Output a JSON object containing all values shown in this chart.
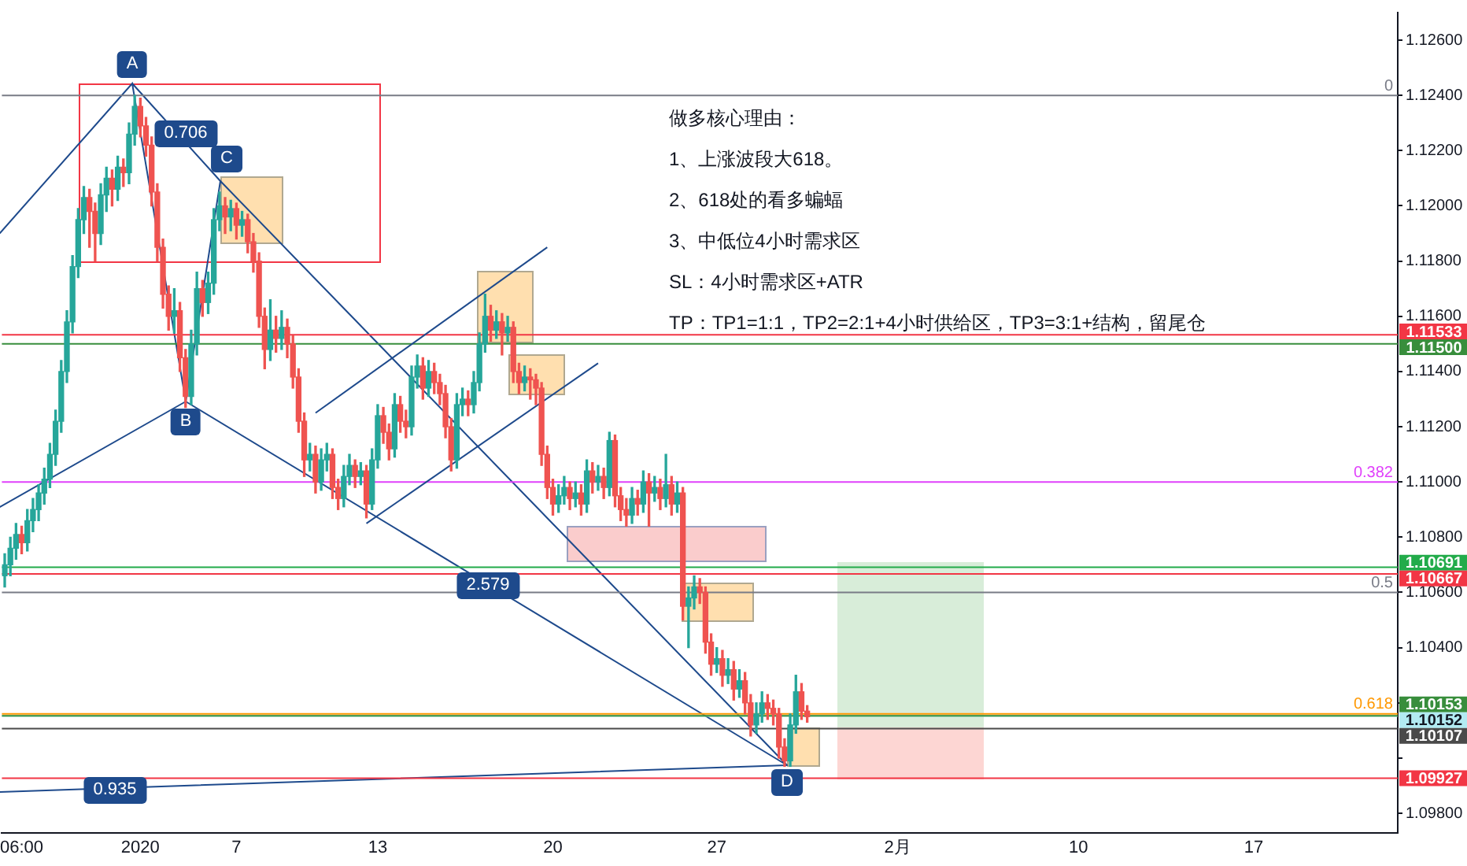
{
  "chart_data": {
    "type": "candlestick",
    "categories": [
      null,
      null,
      null,
      "06:00",
      null,
      null,
      null,
      null,
      null,
      null,
      null,
      null,
      null,
      null,
      null,
      null,
      null,
      null,
      null,
      null,
      null,
      null,
      null,
      null,
      "2020",
      null,
      null,
      null,
      null,
      null,
      null,
      null,
      null,
      null,
      null,
      null,
      null,
      null,
      null,
      null,
      null,
      "7",
      null,
      null,
      null,
      null,
      null,
      null,
      null,
      null,
      null,
      null,
      null,
      null,
      null,
      null,
      null,
      null,
      null,
      null,
      null,
      null,
      null,
      null,
      null,
      null,
      "13",
      null,
      null,
      null,
      null,
      null,
      null,
      null,
      null,
      null,
      null,
      null,
      null,
      null,
      null,
      null,
      null,
      null,
      null,
      null,
      null,
      null,
      null,
      null,
      null,
      null,
      null,
      null,
      null,
      null,
      null,
      "20",
      null,
      null,
      null,
      null,
      null,
      null,
      null,
      null,
      null,
      null,
      null,
      null,
      null,
      null,
      null,
      null,
      null,
      null,
      null,
      null,
      null,
      null,
      null,
      null,
      null,
      null,
      null,
      null,
      "27",
      null,
      null,
      null,
      null,
      null,
      null,
      null,
      null,
      null,
      null,
      null,
      null,
      null,
      null,
      null,
      null,
      null,
      null,
      null,
      null,
      null,
      null,
      null,
      null,
      null,
      null,
      null,
      null,
      null,
      null,
      null,
      "2月",
      null,
      null,
      null,
      null,
      null,
      null,
      null,
      null,
      null,
      null,
      null,
      null,
      null,
      null,
      null,
      null,
      null,
      null,
      null,
      null,
      null,
      null,
      null,
      null,
      null,
      null,
      null,
      null,
      null,
      null,
      null,
      "10",
      null,
      null,
      null,
      null,
      null,
      null,
      null,
      null,
      null,
      null,
      null,
      null,
      null,
      null,
      null,
      null,
      null,
      null,
      null,
      null,
      null,
      null,
      null,
      null,
      null,
      null,
      null,
      null,
      null,
      null,
      "17",
      null,
      null,
      null,
      null,
      null,
      null,
      null,
      null,
      null,
      null,
      null,
      null,
      null,
      null,
      null,
      null,
      null,
      null,
      null,
      null,
      null,
      null,
      null,
      null,
      null
    ],
    "ohlc": [
      [
        1.1066,
        1.1074,
        1.1062,
        1.107
      ],
      [
        1.107,
        1.108,
        1.1066,
        1.1076
      ],
      [
        1.1076,
        1.1085,
        1.1072,
        1.1081
      ],
      [
        1.1081,
        1.1084,
        1.1074,
        1.1078
      ],
      [
        1.1078,
        1.109,
        1.1075,
        1.1086
      ],
      [
        1.1086,
        1.1094,
        1.1082,
        1.109
      ],
      [
        1.109,
        1.1099,
        1.1086,
        1.1096
      ],
      [
        1.1096,
        1.1105,
        1.1092,
        1.1101
      ],
      [
        1.1101,
        1.1114,
        1.1098,
        1.111
      ],
      [
        1.111,
        1.1126,
        1.1106,
        1.1122
      ],
      [
        1.1122,
        1.1144,
        1.1118,
        1.114
      ],
      [
        1.114,
        1.1162,
        1.1136,
        1.1158
      ],
      [
        1.1158,
        1.1182,
        1.1154,
        1.1178
      ],
      [
        1.1178,
        1.1199,
        1.1174,
        1.1195
      ],
      [
        1.1195,
        1.1207,
        1.119,
        1.1203
      ],
      [
        1.1203,
        1.1206,
        1.1185,
        1.1198
      ],
      [
        1.1198,
        1.1201,
        1.118,
        1.119
      ],
      [
        1.119,
        1.1208,
        1.1186,
        1.1204
      ],
      [
        1.1204,
        1.1214,
        1.1198,
        1.121
      ],
      [
        1.121,
        1.1213,
        1.12,
        1.1206
      ],
      [
        1.1206,
        1.1218,
        1.1202,
        1.1214
      ],
      [
        1.1214,
        1.1217,
        1.1207,
        1.1212
      ],
      [
        1.1212,
        1.123,
        1.1208,
        1.1226
      ],
      [
        1.1226,
        1.124,
        1.1222,
        1.1236
      ],
      [
        1.1236,
        1.1239,
        1.1225,
        1.1229
      ],
      [
        1.1229,
        1.1232,
        1.1218,
        1.1222
      ],
      [
        1.1222,
        1.1225,
        1.12,
        1.1205
      ],
      [
        1.1205,
        1.1208,
        1.118,
        1.1185
      ],
      [
        1.1185,
        1.1188,
        1.1163,
        1.1168
      ],
      [
        1.1168,
        1.1171,
        1.1155,
        1.116
      ],
      [
        1.116,
        1.117,
        1.1154,
        1.1162
      ],
      [
        1.1162,
        1.1165,
        1.114,
        1.1145
      ],
      [
        1.1145,
        1.1148,
        1.1127,
        1.1131
      ],
      [
        1.1131,
        1.1155,
        1.1128,
        1.115
      ],
      [
        1.115,
        1.1176,
        1.1146,
        1.117
      ],
      [
        1.117,
        1.1173,
        1.116,
        1.1165
      ],
      [
        1.1165,
        1.1176,
        1.1161,
        1.1172
      ],
      [
        1.1172,
        1.1199,
        1.1168,
        1.1195
      ],
      [
        1.1195,
        1.1205,
        1.1191,
        1.12
      ],
      [
        1.12,
        1.1203,
        1.119,
        1.1196
      ],
      [
        1.1196,
        1.1202,
        1.1191,
        1.1199
      ],
      [
        1.1199,
        1.1201,
        1.1188,
        1.1193
      ],
      [
        1.1193,
        1.1198,
        1.1189,
        1.1195
      ],
      [
        1.1195,
        1.1197,
        1.1183,
        1.1187
      ],
      [
        1.1187,
        1.119,
        1.1176,
        1.118
      ],
      [
        1.118,
        1.1183,
        1.1156,
        1.116
      ],
      [
        1.116,
        1.1163,
        1.1141,
        1.1148
      ],
      [
        1.1148,
        1.1166,
        1.1144,
        1.1155
      ],
      [
        1.1155,
        1.116,
        1.1147,
        1.1152
      ],
      [
        1.1152,
        1.1162,
        1.1148,
        1.1156
      ],
      [
        1.1156,
        1.1159,
        1.1145,
        1.115
      ],
      [
        1.115,
        1.1153,
        1.1134,
        1.1138
      ],
      [
        1.1138,
        1.1141,
        1.1118,
        1.1122
      ],
      [
        1.1122,
        1.1125,
        1.1102,
        1.1108
      ],
      [
        1.1108,
        1.1114,
        1.1104,
        1.111
      ],
      [
        1.111,
        1.1113,
        1.1096,
        1.11
      ],
      [
        1.11,
        1.1112,
        1.1097,
        1.1108
      ],
      [
        1.1108,
        1.1114,
        1.1104,
        1.111
      ],
      [
        1.111,
        1.1112,
        1.1094,
        1.1098
      ],
      [
        1.1098,
        1.1101,
        1.109,
        1.1094
      ],
      [
        1.1094,
        1.1106,
        1.1091,
        1.1102
      ],
      [
        1.1102,
        1.111,
        1.1099,
        1.1106
      ],
      [
        1.1106,
        1.1108,
        1.1098,
        1.1102
      ],
      [
        1.1102,
        1.1107,
        1.1099,
        1.1104
      ],
      [
        1.1104,
        1.1106,
        1.1087,
        1.1092
      ],
      [
        1.1092,
        1.1112,
        1.109,
        1.1108
      ],
      [
        1.1108,
        1.1128,
        1.1105,
        1.1124
      ],
      [
        1.1124,
        1.1127,
        1.1114,
        1.1118
      ],
      [
        1.1118,
        1.1121,
        1.1108,
        1.1112
      ],
      [
        1.1112,
        1.1132,
        1.1109,
        1.1128
      ],
      [
        1.1128,
        1.1131,
        1.1118,
        1.1122
      ],
      [
        1.1122,
        1.1126,
        1.1116,
        1.112
      ],
      [
        1.112,
        1.1142,
        1.1117,
        1.1138
      ],
      [
        1.1138,
        1.1146,
        1.1134,
        1.1142
      ],
      [
        1.1142,
        1.1145,
        1.113,
        1.1134
      ],
      [
        1.1134,
        1.1144,
        1.1131,
        1.114
      ],
      [
        1.114,
        1.1143,
        1.1132,
        1.1136
      ],
      [
        1.1136,
        1.1139,
        1.1128,
        1.1132
      ],
      [
        1.1132,
        1.1135,
        1.1116,
        1.112
      ],
      [
        1.112,
        1.1123,
        1.1104,
        1.1108
      ],
      [
        1.1108,
        1.1132,
        1.1105,
        1.1128
      ],
      [
        1.1128,
        1.1134,
        1.1124,
        1.113
      ],
      [
        1.113,
        1.1133,
        1.1124,
        1.1128
      ],
      [
        1.1128,
        1.114,
        1.1125,
        1.1136
      ],
      [
        1.1136,
        1.1154,
        1.1133,
        1.115
      ],
      [
        1.115,
        1.1168,
        1.1147,
        1.116
      ],
      [
        1.116,
        1.1164,
        1.1151,
        1.1155
      ],
      [
        1.1155,
        1.1162,
        1.1152,
        1.1158
      ],
      [
        1.1158,
        1.1161,
        1.1146,
        1.1154
      ],
      [
        1.1154,
        1.116,
        1.1151,
        1.1156
      ],
      [
        1.1156,
        1.1158,
        1.1136,
        1.114
      ],
      [
        1.114,
        1.1143,
        1.1132,
        1.1136
      ],
      [
        1.1136,
        1.1142,
        1.1133,
        1.1138
      ],
      [
        1.1138,
        1.1141,
        1.113,
        1.1137
      ],
      [
        1.1137,
        1.1139,
        1.1128,
        1.1134
      ],
      [
        1.1134,
        1.1136,
        1.1106,
        1.111
      ],
      [
        1.111,
        1.1113,
        1.1094,
        1.1098
      ],
      [
        1.1098,
        1.1101,
        1.1088,
        1.1092
      ],
      [
        1.1092,
        1.1099,
        1.1089,
        1.1095
      ],
      [
        1.1095,
        1.1102,
        1.1092,
        1.1098
      ],
      [
        1.1098,
        1.11,
        1.109,
        1.1094
      ],
      [
        1.1094,
        1.11,
        1.1091,
        1.1096
      ],
      [
        1.1096,
        1.1099,
        1.1088,
        1.1092
      ],
      [
        1.1092,
        1.1108,
        1.1089,
        1.1104
      ],
      [
        1.1104,
        1.1107,
        1.1096,
        1.11
      ],
      [
        1.11,
        1.1106,
        1.1097,
        1.1102
      ],
      [
        1.1102,
        1.1105,
        1.1094,
        1.1098
      ],
      [
        1.1098,
        1.1118,
        1.1095,
        1.1115
      ],
      [
        1.1115,
        1.1117,
        1.1091,
        1.1095
      ],
      [
        1.1095,
        1.1098,
        1.1086,
        1.109
      ],
      [
        1.109,
        1.1094,
        1.1084,
        1.1088
      ],
      [
        1.1088,
        1.1098,
        1.1085,
        1.1094
      ],
      [
        1.1094,
        1.1097,
        1.1088,
        1.1092
      ],
      [
        1.1092,
        1.1104,
        1.1089,
        1.11
      ],
      [
        1.11,
        1.1103,
        1.1084,
        1.1096
      ],
      [
        1.1096,
        1.1102,
        1.1093,
        1.1098
      ],
      [
        1.1098,
        1.1101,
        1.109,
        1.1094
      ],
      [
        1.1094,
        1.111,
        1.1091,
        1.1099
      ],
      [
        1.1099,
        1.1102,
        1.1088,
        1.1092
      ],
      [
        1.1092,
        1.11,
        1.1089,
        1.1096
      ],
      [
        1.1096,
        1.1098,
        1.105,
        1.1055
      ],
      [
        1.1055,
        1.1062,
        1.104,
        1.1058
      ],
      [
        1.1058,
        1.1066,
        1.1054,
        1.1062
      ],
      [
        1.1062,
        1.1065,
        1.1056,
        1.106
      ],
      [
        1.106,
        1.1062,
        1.1038,
        1.1042
      ],
      [
        1.1042,
        1.1045,
        1.103,
        1.1034
      ],
      [
        1.1034,
        1.104,
        1.1031,
        1.1036
      ],
      [
        1.1036,
        1.1039,
        1.1026,
        1.103
      ],
      [
        1.103,
        1.1036,
        1.1027,
        1.1032
      ],
      [
        1.1032,
        1.1035,
        1.1021,
        1.1025
      ],
      [
        1.1025,
        1.1032,
        1.1022,
        1.1028
      ],
      [
        1.1028,
        1.1031,
        1.1016,
        1.102
      ],
      [
        1.102,
        1.1023,
        1.1008,
        1.1012
      ],
      [
        1.1012,
        1.102,
        1.1009,
        1.1016
      ],
      [
        1.1016,
        1.1024,
        1.1013,
        1.102
      ],
      [
        1.102,
        1.1023,
        1.1014,
        1.1018
      ],
      [
        1.1018,
        1.1021,
        1.1012,
        1.1016
      ],
      [
        1.1016,
        1.1018,
        1.1,
        1.1004
      ],
      [
        1.1004,
        1.1007,
        1.0997,
        1.0999
      ],
      [
        1.0999,
        1.1016,
        1.0997,
        1.1012
      ],
      [
        1.1012,
        1.103,
        1.1009,
        1.1024
      ],
      [
        1.1024,
        1.1027,
        1.1014,
        1.1017
      ],
      [
        1.1017,
        1.1019,
        1.1013,
        1.1015
      ],
      null,
      null,
      null,
      null,
      null,
      null,
      null,
      null,
      null,
      null,
      null,
      null,
      null,
      null,
      null,
      null,
      null,
      null,
      null,
      null,
      null,
      null,
      null,
      null,
      null,
      null,
      null,
      null,
      null,
      null,
      null,
      null,
      null,
      null,
      null,
      null,
      null,
      null,
      null,
      null,
      null,
      null,
      null,
      null,
      null,
      null,
      null,
      null,
      null,
      null,
      null,
      null,
      null,
      null,
      null,
      null,
      null,
      null,
      null,
      null,
      null,
      null,
      null,
      null,
      null,
      null,
      null,
      null,
      null,
      null,
      null,
      null,
      null,
      null,
      null,
      null,
      null,
      null,
      null,
      null,
      null,
      null,
      null,
      null,
      null,
      null,
      null,
      null,
      null,
      null,
      null,
      null,
      null,
      null,
      null,
      null,
      null,
      null,
      null,
      null,
      null,
      null,
      null,
      null
    ],
    "ylim": [
      1.0973,
      1.127
    ],
    "series": [
      {
        "type": "line",
        "color": "#1e4a8c",
        "values": [
          null,
          null,
          null,
          null,
          null,
          null,
          null,
          null,
          null,
          null,
          null,
          null,
          null,
          null,
          null,
          null,
          null,
          null,
          null,
          null,
          null,
          null,
          null,
          null,
          null,
          null,
          null,
          null,
          null,
          null,
          null,
          null,
          null,
          null,
          null,
          null,
          null,
          null,
          null,
          null,
          null,
          null,
          null,
          null,
          null,
          null,
          null,
          null,
          null,
          null,
          null,
          null,
          null,
          null,
          null,
          null,
          null,
          null,
          null,
          null,
          null,
          null,
          null,
          null,
          1.1085,
          null,
          null,
          null,
          null,
          null,
          null,
          null,
          null,
          null,
          null,
          null,
          null,
          null,
          null,
          null,
          null,
          null,
          null,
          null,
          null,
          null,
          null,
          null,
          null,
          null,
          null,
          null,
          null,
          null,
          null,
          null,
          null,
          null,
          null,
          null,
          null,
          null,
          null,
          null,
          null,
          1.1143,
          null,
          null,
          null,
          null,
          null,
          null,
          null,
          null,
          null,
          null,
          null,
          null,
          null,
          null,
          null,
          null,
          null,
          null,
          null,
          null,
          null,
          null,
          null,
          null,
          null,
          null,
          null,
          null,
          null,
          null,
          null,
          null,
          null,
          null,
          null,
          null,
          null,
          null,
          null,
          null,
          null,
          null,
          null,
          null,
          null,
          null,
          null,
          null,
          null,
          null,
          null,
          null,
          null,
          null,
          null,
          null,
          null,
          null,
          null,
          null,
          null,
          null,
          null,
          null,
          null,
          null,
          null,
          null,
          null,
          null,
          null,
          null,
          null,
          null,
          null,
          null,
          null,
          null,
          null,
          null,
          null,
          null,
          null,
          null,
          null,
          null,
          null,
          null,
          null,
          null,
          null,
          null,
          null,
          null,
          null,
          null,
          null,
          null,
          null,
          null,
          null,
          null,
          null,
          null,
          null,
          null,
          null,
          null,
          null,
          null,
          null,
          null,
          null,
          null,
          null,
          null,
          null,
          null,
          null,
          null,
          null,
          null,
          null,
          null,
          null,
          null,
          null,
          null,
          null,
          null,
          null,
          null,
          null,
          null,
          null,
          null,
          null,
          null,
          null,
          null,
          null
        ]
      },
      {
        "type": "line",
        "color": "#1e4a8c",
        "values": [
          null,
          null,
          null,
          null,
          null,
          null,
          null,
          null,
          null,
          null,
          null,
          null,
          null,
          null,
          null,
          null,
          null,
          null,
          null,
          null,
          null,
          null,
          null,
          null,
          null,
          null,
          null,
          null,
          null,
          null,
          null,
          null,
          null,
          null,
          null,
          null,
          null,
          null,
          null,
          null,
          null,
          null,
          null,
          null,
          null,
          null,
          null,
          null,
          null,
          null,
          null,
          null,
          null,
          null,
          null,
          1.1125,
          null,
          null,
          null,
          null,
          null,
          null,
          null,
          null,
          null,
          null,
          null,
          null,
          null,
          null,
          null,
          null,
          null,
          null,
          null,
          null,
          null,
          null,
          null,
          null,
          null,
          null,
          null,
          null,
          null,
          null,
          null,
          null,
          null,
          null,
          null,
          null,
          null,
          null,
          null,
          null,
          1.1185,
          null,
          null,
          null,
          null,
          null,
          null,
          null,
          null,
          null,
          null,
          null,
          null,
          null,
          null,
          null,
          null,
          null,
          null,
          null,
          null,
          null,
          null,
          null,
          null,
          null,
          null,
          null,
          null,
          null,
          null,
          null,
          null,
          null,
          null,
          null,
          null,
          null,
          null,
          null,
          null,
          null,
          null,
          null,
          null,
          null,
          null,
          null,
          null,
          null,
          null,
          null,
          null,
          null,
          null,
          null,
          null,
          null,
          null,
          null,
          null,
          null,
          null,
          null,
          null,
          null,
          null,
          null,
          null,
          null,
          null,
          null,
          null,
          null,
          null,
          null,
          null,
          null,
          null,
          null,
          null,
          null,
          null,
          null,
          null,
          null,
          null,
          null,
          null,
          null,
          null,
          null,
          null,
          null,
          null,
          null,
          null,
          null,
          null,
          null,
          null,
          null,
          null,
          null,
          null,
          null,
          null,
          null,
          null,
          null,
          null,
          null,
          null,
          null,
          null,
          null,
          null,
          null,
          null,
          null,
          null,
          null,
          null,
          null,
          null,
          null,
          null,
          null,
          null,
          null,
          null,
          null,
          null,
          null,
          null,
          null,
          null,
          null,
          null,
          null,
          null,
          null,
          null,
          null,
          null,
          null,
          null,
          null,
          null,
          null,
          null
        ]
      }
    ],
    "yticks": [
      {
        "value": 1.098,
        "label": "1.09800"
      },
      {
        "value": 1.1,
        "label": null
      },
      {
        "value": 1.102,
        "label": null
      },
      {
        "value": 1.104,
        "label": "1.10400"
      },
      {
        "value": 1.106,
        "label": "1.10600"
      },
      {
        "value": 1.108,
        "label": "1.10800"
      },
      {
        "value": 1.11,
        "label": "1.11000"
      },
      {
        "value": 1.112,
        "label": "1.11200"
      },
      {
        "value": 1.114,
        "label": "1.11400"
      },
      {
        "value": 1.116,
        "label": "1.11600"
      },
      {
        "value": 1.118,
        "label": "1.11800"
      },
      {
        "value": 1.12,
        "label": "1.12000"
      },
      {
        "value": 1.122,
        "label": "1.12200"
      },
      {
        "value": 1.124,
        "label": "1.12400"
      },
      {
        "value": 1.126,
        "label": "1.12600"
      }
    ],
    "ref_lines": [
      {
        "axis": "y",
        "value": 1.124,
        "color": "#787b86"
      },
      {
        "axis": "y",
        "value": 1.11,
        "color": "#e040fb"
      },
      {
        "axis": "y",
        "value": 1.106,
        "color": "#787b86"
      },
      {
        "axis": "y",
        "value": 1.1016,
        "color": "#ff9800"
      },
      {
        "axis": "y",
        "value": 1.11533,
        "label": "1.11533",
        "color": "#f23645"
      },
      {
        "axis": "y",
        "value": 1.115,
        "label": "1.11500",
        "color": "#388e3c"
      },
      {
        "axis": "y",
        "value": 1.10691,
        "label": "1.10691",
        "color": "#22ab4a"
      },
      {
        "axis": "y",
        "value": 1.10667,
        "label": "1.10667",
        "color": "#f23645"
      },
      {
        "axis": "y",
        "value": 1.10152,
        "label": "1.10152",
        "color": "#b2ebf2"
      },
      {
        "axis": "y",
        "value": 1.10153,
        "label": "1.10153",
        "color": "#388e3c"
      },
      {
        "axis": "y",
        "value": 1.10107,
        "label": "1.10107",
        "color": "#4a4a4a"
      },
      {
        "axis": "y",
        "value": 1.09927,
        "label": "1.09927",
        "color": "#f23645"
      }
    ],
    "annotations": [
      "A",
      "B",
      "C",
      "D",
      "0.706",
      "2.579",
      "0.935",
      {
        "text": "0",
        "y": 1.124
      },
      {
        "text": "0.382",
        "y": 1.11
      },
      {
        "text": "0.5",
        "y": 1.106
      },
      {
        "text": "0.618",
        "y": 1.1016
      },
      "做多核心理由：",
      "1、上涨波段大618。",
      "2、618处的看多蝙蝠",
      "3、中低位4小时需求区",
      "SL：4小时需求区+ATR",
      "TP：TP1=1:1，TP2=2:1+4小时供给区，TP3=3:1+结构，留尾仓"
    ],
    "grid": false,
    "legend": false
  }
}
